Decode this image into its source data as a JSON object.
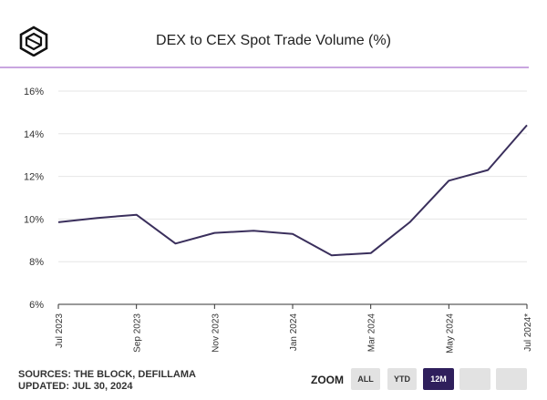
{
  "header": {
    "title": "DEX to CEX Spot Trade Volume (%)"
  },
  "footer": {
    "sources": "SOURCES: THE BLOCK, DEFILLAMA",
    "updated": "UPDATED: JUL 30, 2024"
  },
  "zoom": {
    "label": "ZOOM",
    "buttons": [
      "ALL",
      "YTD",
      "12M",
      "",
      ""
    ],
    "active": "12M"
  },
  "colors": {
    "line": "#3a2f5c",
    "accent": "#c9a6e0",
    "active": "#2f1f5c"
  },
  "chart_data": {
    "type": "line",
    "title": "DEX to CEX Spot Trade Volume (%)",
    "xlabel": "",
    "ylabel": "",
    "ylim": [
      6,
      16
    ],
    "y_ticks": [
      "6%",
      "8%",
      "10%",
      "12%",
      "14%",
      "16%"
    ],
    "x_ticks": [
      "Jul 2023",
      "Sep 2023",
      "Nov 2023",
      "Jan 2024",
      "Mar 2024",
      "May 2024",
      "Jul 2024*"
    ],
    "x": [
      "Jul 2023",
      "Aug 2023",
      "Sep 2023",
      "Oct 2023",
      "Nov 2023",
      "Dec 2023",
      "Jan 2024",
      "Feb 2024",
      "Mar 2024",
      "Apr 2024",
      "May 2024",
      "Jun 2024",
      "Jul 2024*"
    ],
    "series": [
      {
        "name": "DEX to CEX Spot Trade Volume (%)",
        "values": [
          9.85,
          10.05,
          10.2,
          8.85,
          9.35,
          9.45,
          9.3,
          8.3,
          8.4,
          9.85,
          11.8,
          12.3,
          14.4
        ]
      }
    ]
  }
}
